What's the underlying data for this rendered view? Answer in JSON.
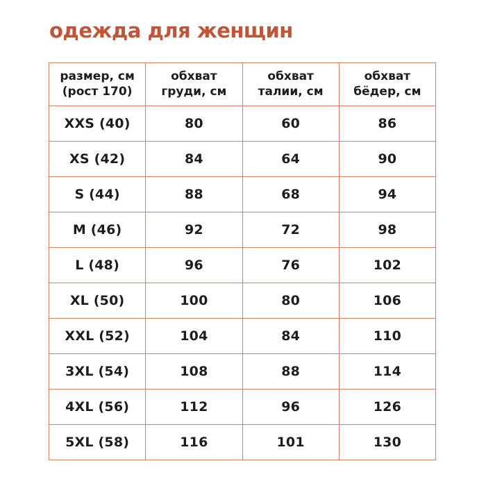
{
  "page": {
    "title": "одежда для женщин",
    "colors": {
      "title_accent": "#c05639",
      "table_border": "#cb8367",
      "text": "#1d1d1d",
      "background": "#ffffff"
    }
  },
  "table": {
    "headers": [
      {
        "line1": "размер, см",
        "line2": "(рост 170)"
      },
      {
        "line1": "обхват",
        "line2": "груди, см"
      },
      {
        "line1": "обхват",
        "line2": "талии, см"
      },
      {
        "line1": "обхват",
        "line2": "бёдер, см"
      }
    ],
    "rows": [
      {
        "size": "XXS (40)",
        "chest": "80",
        "waist": "60",
        "hips": "86"
      },
      {
        "size": "XS (42)",
        "chest": "84",
        "waist": "64",
        "hips": "90"
      },
      {
        "size": "S (44)",
        "chest": "88",
        "waist": "68",
        "hips": "94"
      },
      {
        "size": "M (46)",
        "chest": "92",
        "waist": "72",
        "hips": "98"
      },
      {
        "size": "L (48)",
        "chest": "96",
        "waist": "76",
        "hips": "102"
      },
      {
        "size": "XL (50)",
        "chest": "100",
        "waist": "80",
        "hips": "106"
      },
      {
        "size": "XXL (52)",
        "chest": "104",
        "waist": "84",
        "hips": "110"
      },
      {
        "size": "3XL (54)",
        "chest": "108",
        "waist": "88",
        "hips": "114"
      },
      {
        "size": "4XL (56)",
        "chest": "112",
        "waist": "96",
        "hips": "126"
      },
      {
        "size": "5XL (58)",
        "chest": "116",
        "waist": "101",
        "hips": "130"
      }
    ]
  },
  "chart_data": {
    "type": "table",
    "title": "одежда для женщин",
    "columns": [
      "размер, см (рост 170)",
      "обхват груди, см",
      "обхват талии, см",
      "обхват бёдер, см"
    ],
    "rows": [
      [
        "XXS (40)",
        80,
        60,
        86
      ],
      [
        "XS (42)",
        84,
        64,
        90
      ],
      [
        "S (44)",
        88,
        68,
        94
      ],
      [
        "M (46)",
        92,
        72,
        98
      ],
      [
        "L (48)",
        96,
        76,
        102
      ],
      [
        "XL (50)",
        100,
        80,
        106
      ],
      [
        "XXL (52)",
        104,
        84,
        110
      ],
      [
        "3XL (54)",
        108,
        88,
        114
      ],
      [
        "4XL (56)",
        112,
        96,
        126
      ],
      [
        "5XL (58)",
        116,
        101,
        130
      ]
    ],
    "layout": {
      "grid": true,
      "header_row": true,
      "text_align": "center"
    }
  }
}
